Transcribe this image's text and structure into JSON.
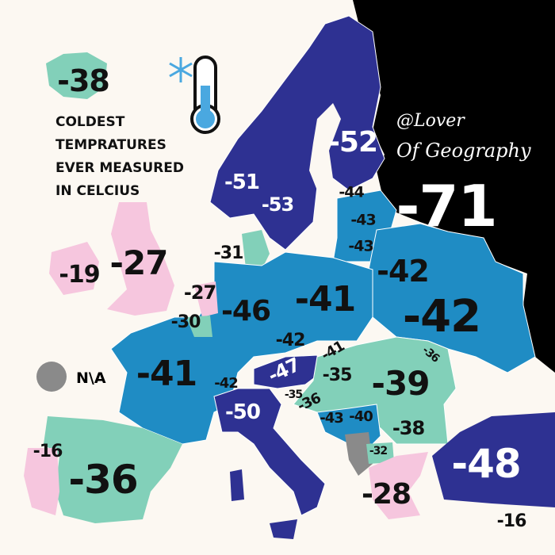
{
  "title_lines": [
    "COLDEST",
    "TEMPRATURES",
    "EVER MEASURED",
    "IN CELCIUS"
  ],
  "watermark": [
    "@Lover",
    "Of Geography"
  ],
  "legend": {
    "na_label": "N\\A",
    "na_color": "#8a8a8a"
  },
  "colors": {
    "background": "#fcf8f2",
    "darkest": "#000000",
    "dark_blue": "#2e3192",
    "mid_blue": "#1f8cc4",
    "teal": "#82d0b9",
    "pink": "#f6c6de",
    "na": "#8a8a8a"
  },
  "icons": [
    "thermometer-icon",
    "snowflake-icon"
  ],
  "values": [
    "-38",
    "-52",
    "-51",
    "-53",
    "-44",
    "-43",
    "-43",
    "-71",
    "-31",
    "-19",
    "-27",
    "-27",
    "-30",
    "-46",
    "-41",
    "-42",
    "-42",
    "-42",
    "-41",
    "-36",
    "-47",
    "-35",
    "-39",
    "-41",
    "-42",
    "-50",
    "-35",
    "-36",
    "-43",
    "-40",
    "-38",
    "-32",
    "-48",
    "-16",
    "-36",
    "-28",
    "-16"
  ]
}
